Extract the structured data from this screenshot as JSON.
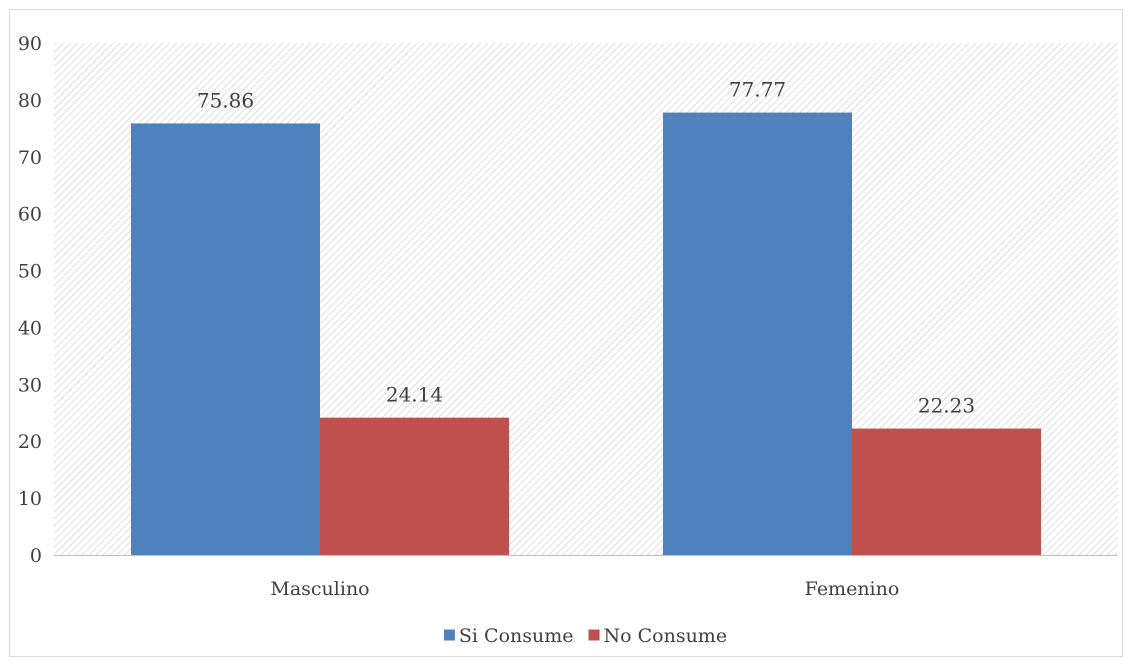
{
  "chart_data": {
    "type": "bar",
    "categories": [
      "Masculino",
      "Femenino"
    ],
    "series": [
      {
        "name": "Si Consume",
        "values": [
          75.86,
          77.77
        ],
        "color": "#4f81bd"
      },
      {
        "name": "No Consume",
        "values": [
          24.14,
          22.23
        ],
        "color": "#c0504d"
      }
    ],
    "ylim": [
      0,
      90
    ],
    "yticks": [
      0,
      10,
      20,
      30,
      40,
      50,
      60,
      70,
      80,
      90
    ],
    "data_labels": true,
    "legend": "bottom",
    "plot_background": "diagonal-hatch",
    "grid": false
  }
}
